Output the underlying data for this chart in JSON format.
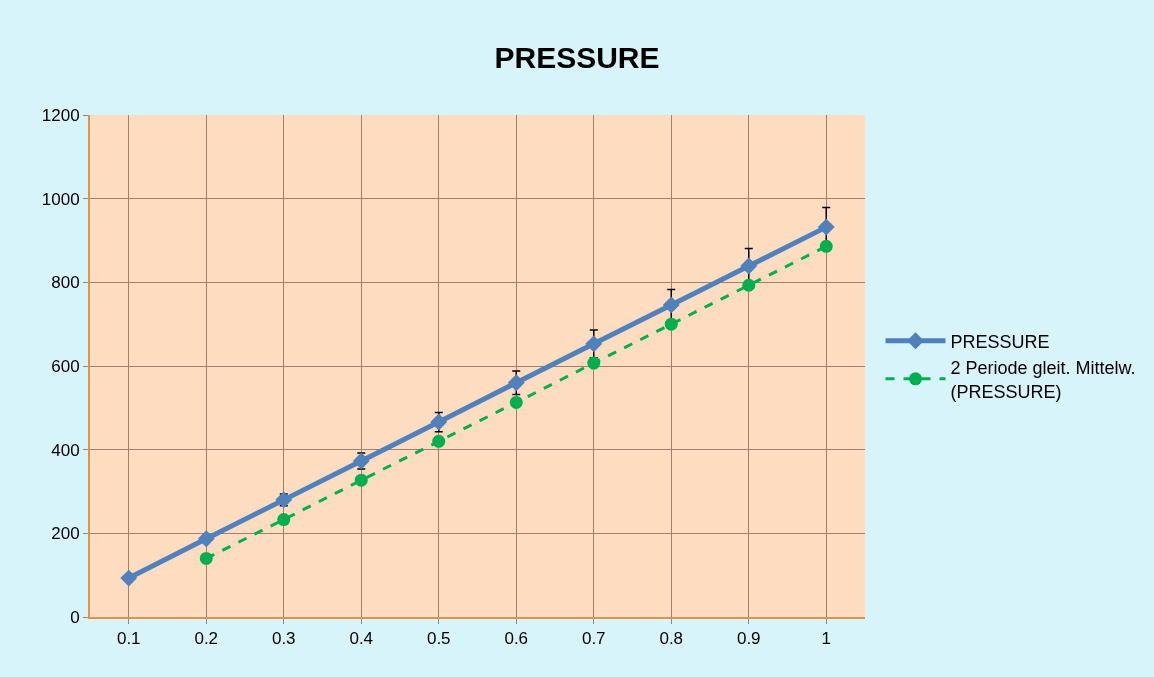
{
  "chart_data": {
    "type": "line",
    "title": "PRESSURE",
    "categories": [
      "0.1",
      "0.2",
      "0.3",
      "0.4",
      "0.5",
      "0.6",
      "0.7",
      "0.8",
      "0.9",
      "1"
    ],
    "series": [
      {
        "name": "PRESSURE",
        "color": "#4f81bd",
        "values": [
          93,
          187,
          280,
          373,
          466,
          560,
          653,
          746,
          839,
          932
        ],
        "errors": [
          null,
          null,
          14,
          19,
          23,
          28,
          33,
          37,
          42,
          47
        ],
        "marker": "diamond",
        "line_style": "solid"
      },
      {
        "name": "2 Periode gleit. Mittelw. (PRESSURE)",
        "color": "#00b050",
        "values": [
          null,
          140,
          233,
          327,
          420,
          513,
          607,
          700,
          793,
          886
        ],
        "marker": "circle",
        "line_style": "dashed"
      }
    ],
    "ylim": [
      0,
      1200
    ],
    "yticks": [
      0,
      200,
      400,
      600,
      800,
      1000,
      1200
    ],
    "grid": true,
    "legend": "right"
  }
}
